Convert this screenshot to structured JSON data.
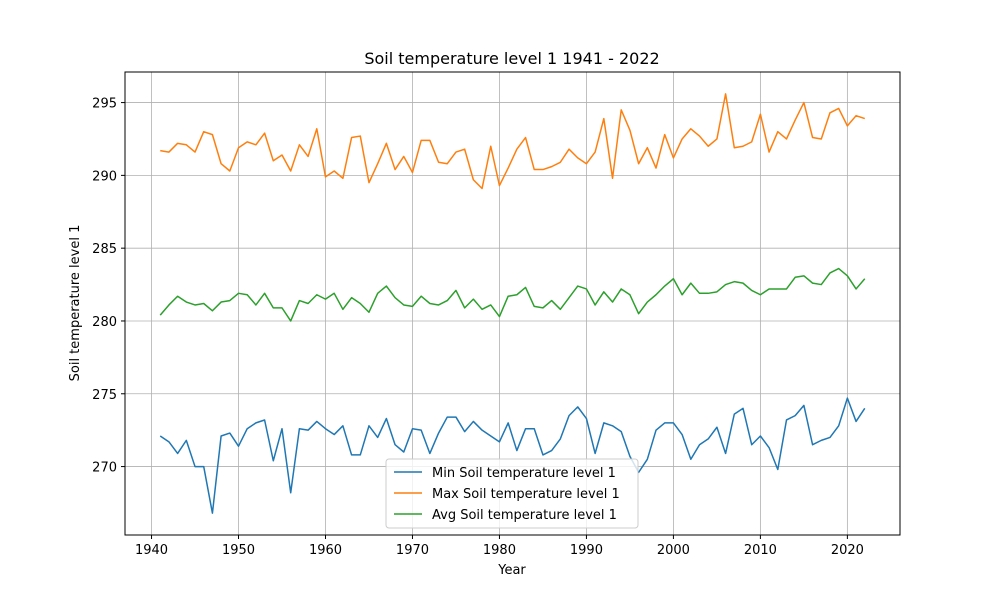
{
  "chart_data": {
    "type": "line",
    "title": "Soil temperature level 1 1941 - 2022",
    "xlabel": "Year",
    "ylabel": "Soil temperature level 1",
    "xlim": [
      1936.95,
      2026.05
    ],
    "ylim": [
      265.3,
      297.1
    ],
    "x_ticks": [
      1940,
      1950,
      1960,
      1970,
      1980,
      1990,
      2000,
      2010,
      2020
    ],
    "y_ticks": [
      270,
      275,
      280,
      285,
      290,
      295
    ],
    "grid": true,
    "legend_position": "bottom-center",
    "x": [
      1941,
      1942,
      1943,
      1944,
      1945,
      1946,
      1947,
      1948,
      1949,
      1950,
      1951,
      1952,
      1953,
      1954,
      1955,
      1956,
      1957,
      1958,
      1959,
      1960,
      1961,
      1962,
      1963,
      1964,
      1965,
      1966,
      1967,
      1968,
      1969,
      1970,
      1971,
      1972,
      1973,
      1974,
      1975,
      1976,
      1977,
      1978,
      1979,
      1980,
      1981,
      1982,
      1983,
      1984,
      1985,
      1986,
      1987,
      1988,
      1989,
      1990,
      1991,
      1992,
      1993,
      1994,
      1995,
      1996,
      1997,
      1998,
      1999,
      2000,
      2001,
      2002,
      2003,
      2004,
      2005,
      2006,
      2007,
      2008,
      2009,
      2010,
      2011,
      2012,
      2013,
      2014,
      2015,
      2016,
      2017,
      2018,
      2019,
      2020,
      2021,
      2022
    ],
    "series": [
      {
        "name": "Min Soil temperature level 1",
        "color": "#1f77b4",
        "values": [
          272.1,
          271.7,
          270.9,
          271.8,
          270.0,
          270.0,
          266.8,
          272.1,
          272.3,
          271.4,
          272.6,
          273.0,
          273.2,
          270.4,
          272.6,
          268.2,
          272.6,
          272.5,
          273.1,
          272.6,
          272.2,
          272.8,
          270.8,
          270.8,
          272.8,
          272.0,
          273.3,
          271.5,
          271.0,
          272.6,
          272.5,
          270.9,
          272.3,
          273.4,
          273.4,
          272.4,
          273.1,
          272.5,
          272.1,
          271.7,
          273.0,
          271.1,
          272.6,
          272.6,
          270.8,
          271.1,
          271.9,
          273.5,
          274.1,
          273.3,
          270.9,
          273.0,
          272.8,
          272.4,
          270.7,
          269.6,
          270.5,
          272.5,
          273.0,
          273.0,
          272.2,
          270.5,
          271.5,
          271.9,
          272.7,
          270.9,
          273.6,
          274.0,
          271.5,
          272.1,
          271.3,
          269.8,
          273.2,
          273.5,
          274.2,
          271.5,
          271.8,
          272.0,
          272.8,
          274.7,
          273.1,
          274.0
        ]
      },
      {
        "name": "Max Soil temperature level 1",
        "color": "#ff7f0e",
        "values": [
          291.7,
          291.6,
          292.2,
          292.1,
          291.6,
          293.0,
          292.8,
          290.8,
          290.3,
          291.9,
          292.3,
          292.1,
          292.9,
          291.0,
          291.4,
          290.3,
          292.1,
          291.3,
          293.2,
          289.9,
          290.3,
          289.8,
          292.6,
          292.7,
          289.5,
          290.8,
          292.2,
          290.4,
          291.3,
          290.2,
          292.4,
          292.4,
          290.9,
          290.8,
          291.6,
          291.8,
          289.7,
          289.1,
          292.0,
          289.3,
          290.5,
          291.8,
          292.6,
          290.4,
          290.4,
          290.6,
          290.9,
          291.8,
          291.2,
          290.8,
          291.6,
          293.9,
          289.8,
          294.5,
          293.1,
          290.8,
          291.9,
          290.5,
          292.8,
          291.2,
          292.5,
          293.2,
          292.7,
          292.0,
          292.5,
          295.6,
          291.9,
          292.0,
          292.3,
          294.2,
          291.6,
          293.0,
          292.5,
          293.8,
          295.0,
          292.6,
          292.5,
          294.3,
          294.6,
          293.4,
          294.1,
          293.9
        ]
      },
      {
        "name": "Avg Soil temperature level 1",
        "color": "#2ca02c",
        "values": [
          280.4,
          281.1,
          281.7,
          281.3,
          281.1,
          281.2,
          280.7,
          281.3,
          281.4,
          281.9,
          281.8,
          281.1,
          281.9,
          280.9,
          280.9,
          280.0,
          281.4,
          281.2,
          281.8,
          281.5,
          281.9,
          280.8,
          281.6,
          281.2,
          280.6,
          281.9,
          282.4,
          281.6,
          281.1,
          281.0,
          281.7,
          281.2,
          281.1,
          281.4,
          282.1,
          280.9,
          281.5,
          280.8,
          281.1,
          280.3,
          281.7,
          281.8,
          282.3,
          281.0,
          280.9,
          281.4,
          280.8,
          281.6,
          282.4,
          282.2,
          281.1,
          282.0,
          281.3,
          282.2,
          281.8,
          280.5,
          281.3,
          281.8,
          282.4,
          282.9,
          281.8,
          282.6,
          281.9,
          281.9,
          282.0,
          282.5,
          282.7,
          282.6,
          282.1,
          281.8,
          282.2,
          282.2,
          282.2,
          283.0,
          283.1,
          282.6,
          282.5,
          283.3,
          283.6,
          283.1,
          282.2,
          282.9
        ]
      }
    ]
  }
}
